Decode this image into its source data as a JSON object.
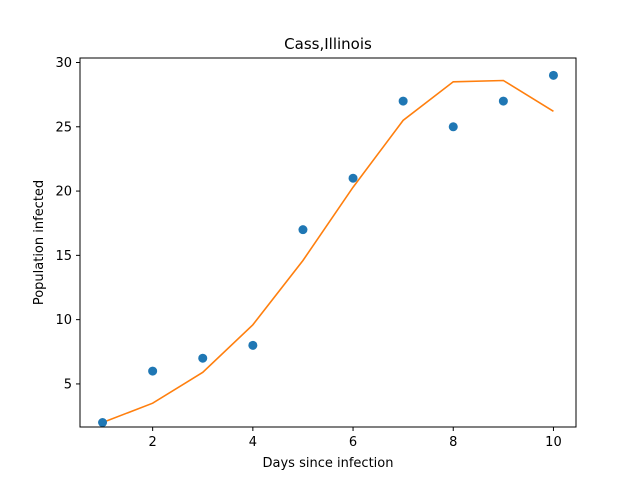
{
  "chart_data": {
    "type": "scatter",
    "title": "Cass,Illinois",
    "xlabel": "Days since infection",
    "ylabel": "Population infected",
    "xlim": [
      0.55,
      10.45
    ],
    "ylim": [
      1.65,
      30.35
    ],
    "xticks": [
      2,
      4,
      6,
      8,
      10
    ],
    "yticks": [
      5,
      10,
      15,
      20,
      25,
      30
    ],
    "grid": false,
    "series": [
      {
        "kind": "scatter",
        "color": "#1f77b4",
        "x": [
          1,
          2,
          3,
          4,
          5,
          6,
          7,
          8,
          9,
          10
        ],
        "y": [
          2,
          6,
          7,
          8,
          17,
          21,
          27,
          25,
          27,
          29
        ]
      },
      {
        "kind": "line",
        "color": "#ff7f0e",
        "x": [
          1,
          2,
          3,
          4,
          5,
          6,
          7,
          8,
          9,
          10
        ],
        "y": [
          2.0,
          3.5,
          5.9,
          9.6,
          14.6,
          20.3,
          25.5,
          28.5,
          28.6,
          26.2
        ]
      }
    ]
  }
}
